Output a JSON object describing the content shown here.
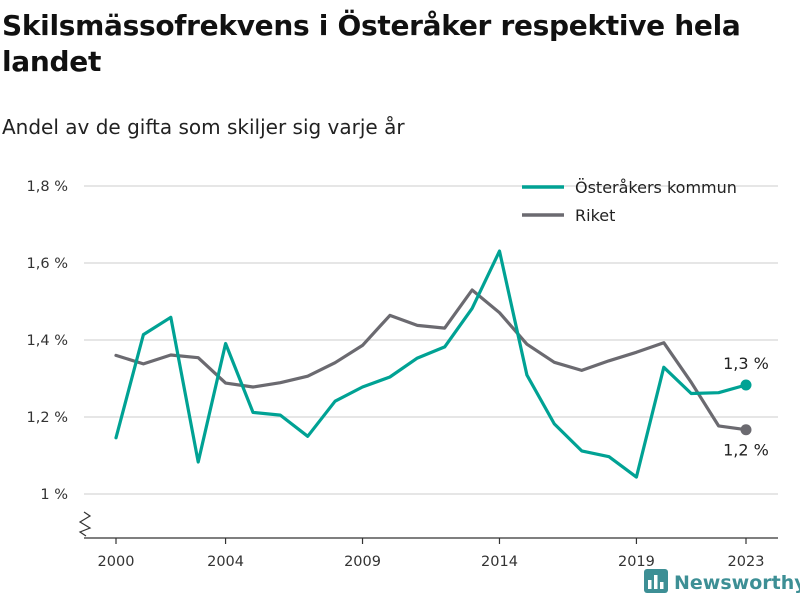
{
  "title": "Skilsmässofrekvens i Österåker respektive hela landet",
  "subtitle": "Andel av de gifta som skiljer sig varje år",
  "brand": {
    "name": "Newsworthy",
    "icon": "bar-chart-logo-icon",
    "color": "#3d8f95"
  },
  "chart_data": {
    "type": "line",
    "title": "Skilsmässofrekvens i Österåker respektive hela landet",
    "subtitle": "Andel av de gifta som skiljer sig varje år",
    "xlabel": "",
    "ylabel": "",
    "x": [
      2000,
      2001,
      2002,
      2003,
      2004,
      2005,
      2006,
      2007,
      2008,
      2009,
      2010,
      2011,
      2012,
      2013,
      2014,
      2015,
      2016,
      2017,
      2018,
      2019,
      2020,
      2021,
      2022,
      2023
    ],
    "x_ticks": [
      2000,
      2004,
      2009,
      2014,
      2019,
      2023
    ],
    "ylim": [
      1.0,
      1.8
    ],
    "y_ticks": [
      1.0,
      1.2,
      1.4,
      1.6,
      1.8
    ],
    "y_tick_labels": [
      "1 %",
      "1,2 %",
      "1,4 %",
      "1,6 %",
      "1,8 %"
    ],
    "y_axis_break": true,
    "grid": true,
    "legend_position": "top-right",
    "series": [
      {
        "name": "Österåkers kommun",
        "color": "#00a294",
        "values": [
          1.146,
          1.414,
          1.459,
          1.083,
          1.391,
          1.212,
          1.205,
          1.15,
          1.241,
          1.278,
          1.304,
          1.353,
          1.382,
          1.482,
          1.631,
          1.309,
          1.182,
          1.112,
          1.097,
          1.044,
          1.329,
          1.261,
          1.263,
          1.283
        ],
        "end_label": "1,3 %"
      },
      {
        "name": "Riket",
        "color": "#6b6a70",
        "values": [
          1.36,
          1.338,
          1.361,
          1.354,
          1.288,
          1.278,
          1.289,
          1.306,
          1.341,
          1.386,
          1.464,
          1.438,
          1.431,
          1.53,
          1.471,
          1.389,
          1.342,
          1.321,
          1.346,
          1.368,
          1.393,
          1.29,
          1.177,
          1.167
        ],
        "end_label": "1,2 %"
      }
    ]
  }
}
